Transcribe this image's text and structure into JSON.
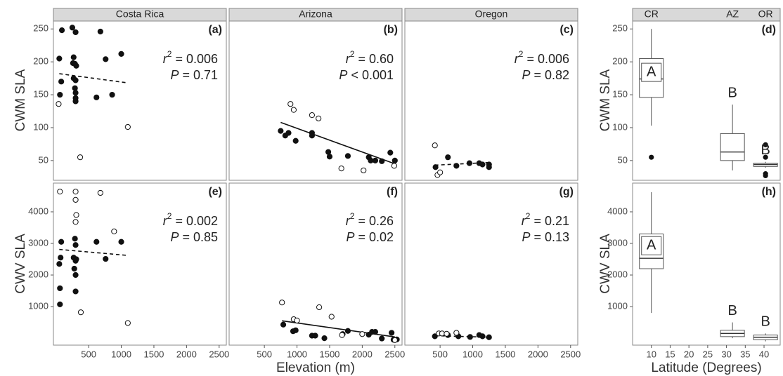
{
  "figure": {
    "y_labels": [
      "CWM SLA",
      "CWV SLA"
    ],
    "x_labels": [
      "Elevation (m)",
      "Latitude (Degrees)"
    ]
  },
  "chart_data": [
    {
      "type": "scatter",
      "strip": "Costa Rica",
      "panel": "(a)",
      "xlim": [
        -40,
        2610
      ],
      "ylim": [
        20,
        262
      ],
      "yticks": [
        50,
        100,
        150,
        200,
        250
      ],
      "x": [
        90,
        250,
        300,
        680,
        50,
        270,
        290,
        260,
        310,
        760,
        1000,
        80,
        270,
        300,
        290,
        300,
        300,
        300,
        620,
        860,
        60,
        40,
        370,
        1100
      ],
      "y": [
        248,
        252,
        245,
        246,
        205,
        207,
        197,
        198,
        194,
        204,
        212,
        170,
        175,
        172,
        160,
        153,
        145,
        140,
        146,
        150,
        150,
        136,
        55,
        101
      ],
      "open": [
        false,
        false,
        false,
        false,
        false,
        false,
        false,
        false,
        false,
        false,
        false,
        false,
        false,
        false,
        false,
        false,
        false,
        false,
        false,
        false,
        false,
        true,
        true,
        true
      ],
      "fit": {
        "x": [
          50,
          1100
        ],
        "y": [
          182,
          168
        ],
        "dashed": true
      },
      "stats": [
        [
          "r",
          "2",
          " = 0.006"
        ],
        [
          "P",
          " = 0.71"
        ]
      ]
    },
    {
      "type": "scatter",
      "strip": "Arizona",
      "panel": "(b)",
      "xlim": [
        -40,
        2610
      ],
      "ylim": [
        20,
        262
      ],
      "x": [
        750,
        820,
        870,
        980,
        1230,
        1230,
        1480,
        1500,
        1780,
        2100,
        2130,
        2200,
        2300,
        2430,
        2500,
        900,
        950,
        1230,
        1330,
        1680,
        2020,
        2490
      ],
      "y": [
        95,
        88,
        92,
        80,
        92,
        88,
        63,
        56,
        57,
        55,
        50,
        50,
        49,
        62,
        50,
        136,
        127,
        119,
        114,
        38,
        35,
        42
      ],
      "open": [
        false,
        false,
        false,
        false,
        false,
        false,
        false,
        false,
        false,
        false,
        false,
        false,
        false,
        false,
        false,
        true,
        true,
        true,
        true,
        true,
        true,
        true
      ],
      "fit": {
        "x": [
          750,
          2500
        ],
        "y": [
          108,
          45
        ],
        "dashed": false
      },
      "stats": [
        [
          "r",
          "2",
          " = 0.60"
        ],
        [
          "P",
          " < 0.001"
        ]
      ]
    },
    {
      "type": "scatter",
      "strip": "Oregon",
      "panel": "(c)",
      "xlim": [
        -40,
        2610
      ],
      "ylim": [
        20,
        262
      ],
      "x": [
        430,
        620,
        750,
        950,
        1100,
        1150,
        1250,
        1250,
        420,
        460,
        500
      ],
      "y": [
        40,
        55,
        42,
        46,
        46,
        44,
        44,
        40,
        73,
        28,
        32
      ],
      "open": [
        false,
        false,
        false,
        false,
        false,
        false,
        false,
        false,
        true,
        true,
        true
      ],
      "fit": {
        "x": [
          420,
          1250
        ],
        "y": [
          43,
          47
        ],
        "dashed": true
      },
      "stats": [
        [
          "r",
          "2",
          " = 0.006"
        ],
        [
          "P",
          " = 0.82"
        ]
      ]
    },
    {
      "type": "box",
      "strips": [
        "CR",
        "AZ",
        "OR"
      ],
      "panel": "(d)",
      "xlim": [
        5,
        44.3
      ],
      "ylim": [
        20,
        262
      ],
      "yticks": [
        50,
        100,
        150,
        200,
        250
      ],
      "groups": [
        {
          "x": 10,
          "whisker_low": 103,
          "q1": 146,
          "median": 174,
          "q3": 205,
          "whisker_high": 250,
          "outliers": [
            55
          ],
          "letter": "A"
        },
        {
          "x": 31.6,
          "whisker_low": 35,
          "q1": 50,
          "median": 63,
          "q3": 91,
          "whisker_high": 135,
          "outliers": [],
          "letter": "B"
        },
        {
          "x": 40.4,
          "whisker_low": 39,
          "q1": 41,
          "median": 44,
          "q3": 46,
          "whisker_high": 48,
          "outliers": [
            74,
            55,
            30,
            27
          ],
          "letter": "B"
        }
      ]
    },
    {
      "type": "scatter",
      "panel": "(e)",
      "xlim": [
        -40,
        2610
      ],
      "ylim": [
        -220,
        4910
      ],
      "yticks": [
        1000,
        2000,
        3000,
        4000
      ],
      "xticks": [
        500,
        1000,
        1500,
        2000,
        2500
      ],
      "x": [
        50,
        70,
        60,
        60,
        80,
        270,
        280,
        290,
        300,
        300,
        310,
        300,
        300,
        620,
        760,
        1000,
        60,
        300,
        300,
        310,
        300,
        680,
        890,
        380,
        1100
      ],
      "y": [
        2350,
        2550,
        1580,
        1070,
        3050,
        2550,
        2200,
        3150,
        2950,
        2450,
        2500,
        2000,
        1480,
        3050,
        2510,
        3050,
        4640,
        4640,
        4380,
        3900,
        3680,
        4600,
        3380,
        820,
        480
      ],
      "open": [
        false,
        false,
        false,
        false,
        false,
        false,
        false,
        false,
        false,
        false,
        false,
        false,
        false,
        false,
        false,
        false,
        true,
        true,
        true,
        true,
        true,
        true,
        true,
        true,
        true
      ],
      "fit": {
        "x": [
          50,
          1100
        ],
        "y": [
          2810,
          2620
        ],
        "dashed": true
      },
      "stats": [
        [
          "r",
          "2",
          " = 0.002"
        ],
        [
          "P",
          " = 0.85"
        ]
      ]
    },
    {
      "type": "scatter",
      "panel": "(f)",
      "xlim": [
        -40,
        2610
      ],
      "ylim": [
        -220,
        4910
      ],
      "xticks": [
        500,
        1000,
        1500,
        2000,
        2500
      ],
      "x": [
        790,
        940,
        980,
        1230,
        1280,
        1420,
        1780,
        1700,
        2100,
        2150,
        2200,
        2300,
        2450,
        2480,
        2530,
        770,
        950,
        1000,
        1340,
        1530,
        1690,
        2000,
        2500
      ],
      "y": [
        430,
        220,
        250,
        80,
        80,
        0,
        230,
        130,
        110,
        200,
        200,
        -10,
        170,
        -50,
        -40,
        1130,
        600,
        560,
        980,
        680,
        100,
        130,
        -60
      ],
      "open": [
        false,
        false,
        false,
        false,
        false,
        false,
        false,
        false,
        false,
        false,
        false,
        false,
        false,
        false,
        false,
        true,
        true,
        true,
        true,
        true,
        true,
        true,
        true
      ],
      "fit": {
        "x": [
          770,
          2500
        ],
        "y": [
          550,
          40
        ],
        "dashed": false
      },
      "stats": [
        [
          "r",
          "2",
          " = 0.26"
        ],
        [
          "P",
          " = 0.02"
        ]
      ]
    },
    {
      "type": "scatter",
      "panel": "(g)",
      "xlim": [
        -40,
        2610
      ],
      "ylim": [
        -220,
        4910
      ],
      "xticks": [
        500,
        1000,
        1500,
        2000,
        2500
      ],
      "x": [
        420,
        620,
        780,
        960,
        1100,
        1150,
        1250,
        480,
        530,
        600,
        750
      ],
      "y": [
        60,
        100,
        60,
        40,
        100,
        60,
        30,
        150,
        150,
        140,
        170
      ],
      "open": [
        false,
        false,
        false,
        false,
        false,
        false,
        false,
        true,
        true,
        true,
        true
      ],
      "fit": {
        "x": [
          420,
          1250
        ],
        "y": [
          80,
          30
        ],
        "dashed": true
      },
      "stats": [
        [
          "r",
          "2",
          " = 0.21"
        ],
        [
          "P",
          " = 0.13"
        ]
      ]
    },
    {
      "type": "box",
      "panel": "(h)",
      "xlim": [
        5,
        44.3
      ],
      "ylim": [
        -220,
        4910
      ],
      "yticks": [
        1000,
        2000,
        3000,
        4000
      ],
      "xticks": [
        10,
        15,
        20,
        25,
        30,
        35,
        40
      ],
      "groups": [
        {
          "x": 10,
          "whisker_low": 800,
          "q1": 2200,
          "median": 2530,
          "q3": 3300,
          "whisker_high": 4620,
          "outliers": [],
          "letter": "A"
        },
        {
          "x": 31.6,
          "whisker_low": 0,
          "q1": 50,
          "median": 150,
          "q3": 250,
          "whisker_high": 500,
          "outliers": [],
          "letter": "B"
        },
        {
          "x": 40.4,
          "whisker_low": -100,
          "q1": -50,
          "median": 30,
          "q3": 100,
          "whisker_high": 150,
          "outliers": [],
          "letter": "B"
        }
      ]
    }
  ]
}
